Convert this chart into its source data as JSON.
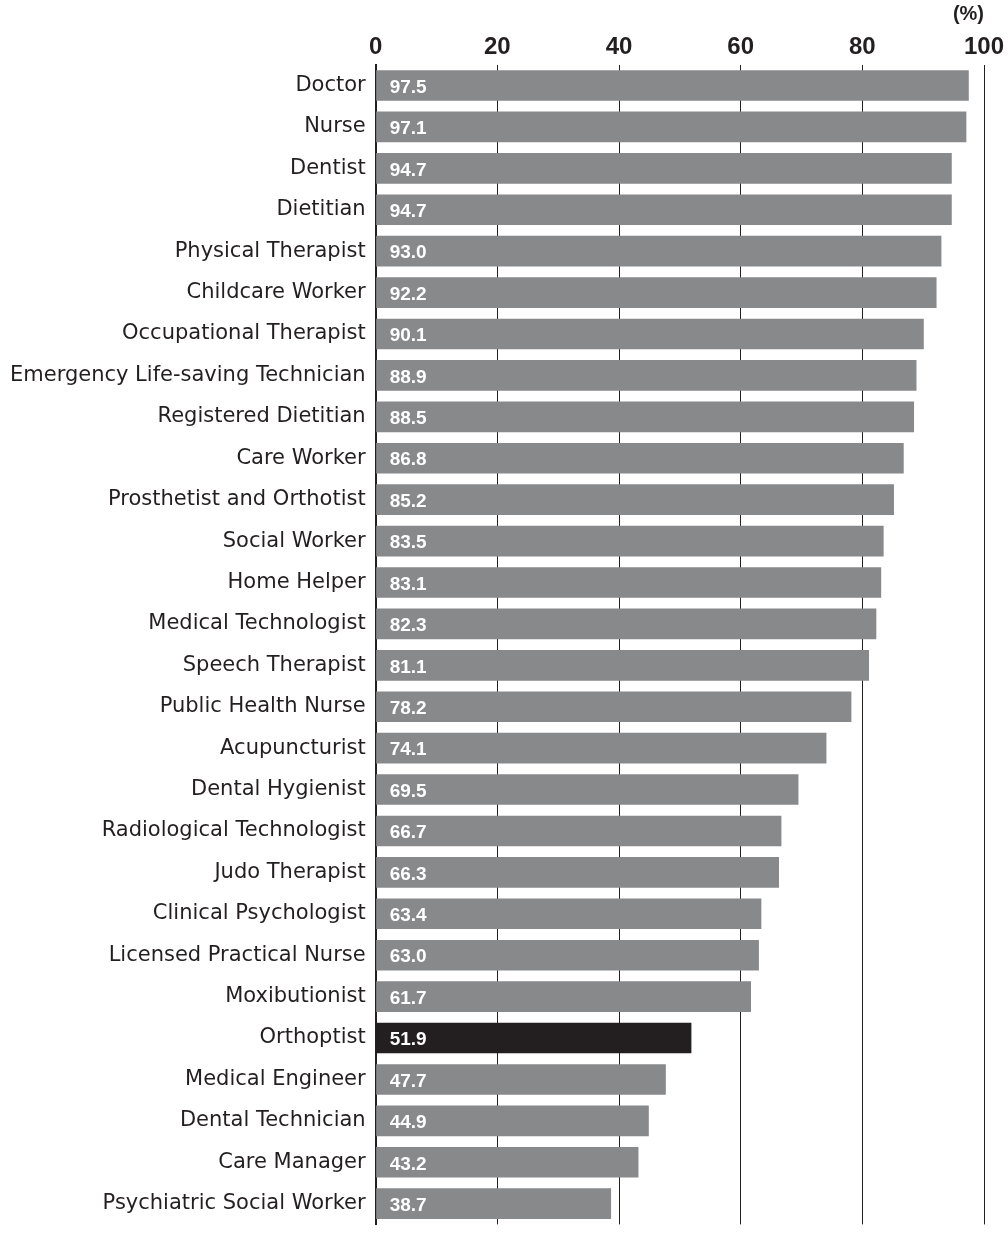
{
  "chart_data": {
    "type": "bar",
    "orientation": "horizontal",
    "xlabel": "(%)",
    "categories": [
      "Doctor",
      "Nurse",
      "Dentist",
      "Dietitian",
      "Physical Therapist",
      "Childcare Worker",
      "Occupational Therapist",
      "Emergency Life-saving Technician",
      "Registered Dietitian",
      "Care Worker",
      "Prosthetist and Orthotist",
      "Social Worker",
      "Home Helper",
      "Medical Technologist",
      "Speech Therapist",
      "Public Health Nurse",
      "Acupuncturist",
      "Dental Hygienist",
      "Radiological Technologist",
      "Judo Therapist",
      "Clinical Psychologist",
      "Licensed Practical Nurse",
      "Moxibutionist",
      "Orthoptist",
      "Medical Engineer",
      "Dental Technician",
      "Care Manager",
      "Psychiatric Social Worker"
    ],
    "values": [
      97.5,
      97.1,
      94.7,
      94.7,
      93.0,
      92.2,
      90.1,
      88.9,
      88.5,
      86.8,
      85.2,
      83.5,
      83.1,
      82.3,
      81.1,
      78.2,
      74.1,
      69.5,
      66.7,
      66.3,
      63.4,
      63.0,
      61.7,
      51.9,
      47.7,
      44.9,
      43.2,
      38.7
    ],
    "colors": [
      "#88898b",
      "#88898b",
      "#88898b",
      "#88898b",
      "#88898b",
      "#88898b",
      "#88898b",
      "#88898b",
      "#88898b",
      "#88898b",
      "#88898b",
      "#88898b",
      "#88898b",
      "#88898b",
      "#88898b",
      "#88898b",
      "#88898b",
      "#88898b",
      "#88898b",
      "#88898b",
      "#88898b",
      "#88898b",
      "#88898b",
      "#231f20",
      "#88898b",
      "#88898b",
      "#88898b",
      "#88898b"
    ],
    "xlim": [
      0,
      100
    ],
    "xticks": [
      0,
      20,
      40,
      60,
      80,
      100
    ],
    "value_labels": [
      "97.5",
      "97.1",
      "94.7",
      "94.7",
      "93.0",
      "92.2",
      "90.1",
      "88.9",
      "88.5",
      "86.8",
      "85.2",
      "83.5",
      "83.1",
      "82.3",
      "81.1",
      "78.2",
      "74.1",
      "69.5",
      "66.7",
      "66.3",
      "63.4",
      "63.0",
      "61.7",
      "51.9",
      "47.7",
      "44.9",
      "43.2",
      "38.7"
    ],
    "grid": "x",
    "legend": false
  }
}
